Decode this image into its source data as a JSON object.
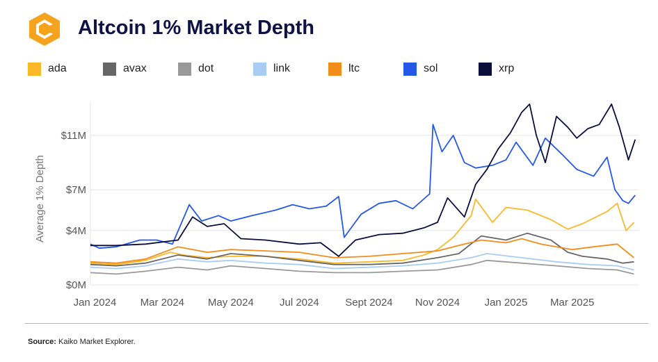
{
  "header": {
    "title": "Altcoin 1% Market Depth",
    "logo_icon": "kaiko-logo-icon"
  },
  "footer": {
    "source_label": "Source:",
    "source_text": " Kaiko Market Explorer."
  },
  "chart_data": {
    "type": "line",
    "title": "Altcoin 1% Market Depth",
    "xlabel": "",
    "ylabel": "Average 1% Depth",
    "x_start": "2023-12-28",
    "x_end": "2025-04-29",
    "x_tick_dates": [
      "2024-01-01",
      "2024-03-01",
      "2024-05-01",
      "2024-07-01",
      "2024-09-01",
      "2024-11-01",
      "2025-01-01",
      "2025-03-01"
    ],
    "x_tick_labels": [
      "Jan 2024",
      "Mar 2024",
      "May 2024",
      "Jul 2024",
      "Sept 2024",
      "Nov 2024",
      "Jan 2025",
      "Mar 2025"
    ],
    "ylim": [
      0,
      13.5
    ],
    "y_ticks": [
      0,
      4,
      7,
      11
    ],
    "y_tick_labels": [
      "$0M",
      "$4M",
      "$7M",
      "$11M"
    ],
    "grid": true,
    "legend_position": "top",
    "series": [
      {
        "name": "ada",
        "color": "#fbb829",
        "points": [
          [
            "2023-12-28",
            1.6
          ],
          [
            "2024-01-20",
            1.5
          ],
          [
            "2024-02-15",
            1.8
          ],
          [
            "2024-03-08",
            2.4
          ],
          [
            "2024-03-20",
            2.2
          ],
          [
            "2024-04-10",
            2.0
          ],
          [
            "2024-05-01",
            2.1
          ],
          [
            "2024-06-01",
            2.1
          ],
          [
            "2024-07-01",
            1.9
          ],
          [
            "2024-08-01",
            1.6
          ],
          [
            "2024-09-01",
            1.7
          ],
          [
            "2024-10-01",
            1.8
          ],
          [
            "2024-10-20",
            2.2
          ],
          [
            "2024-11-01",
            2.6
          ],
          [
            "2024-11-15",
            3.5
          ],
          [
            "2024-12-01",
            5.1
          ],
          [
            "2024-12-05",
            6.3
          ],
          [
            "2024-12-20",
            4.6
          ],
          [
            "2025-01-01",
            5.7
          ],
          [
            "2025-01-20",
            5.5
          ],
          [
            "2025-02-10",
            4.8
          ],
          [
            "2025-02-25",
            4.1
          ],
          [
            "2025-03-10",
            4.5
          ],
          [
            "2025-04-01",
            5.4
          ],
          [
            "2025-04-10",
            6.0
          ],
          [
            "2025-04-18",
            4.0
          ],
          [
            "2025-04-25",
            4.6
          ]
        ]
      },
      {
        "name": "avax",
        "color": "#666666",
        "points": [
          [
            "2023-12-28",
            1.5
          ],
          [
            "2024-01-20",
            1.4
          ],
          [
            "2024-02-15",
            1.6
          ],
          [
            "2024-03-15",
            2.2
          ],
          [
            "2024-04-10",
            1.9
          ],
          [
            "2024-05-01",
            2.3
          ],
          [
            "2024-06-01",
            2.1
          ],
          [
            "2024-07-01",
            1.8
          ],
          [
            "2024-08-01",
            1.5
          ],
          [
            "2024-09-01",
            1.5
          ],
          [
            "2024-10-01",
            1.6
          ],
          [
            "2024-11-01",
            2.0
          ],
          [
            "2024-11-20",
            2.3
          ],
          [
            "2024-12-10",
            3.6
          ],
          [
            "2025-01-01",
            3.3
          ],
          [
            "2025-01-20",
            3.8
          ],
          [
            "2025-02-10",
            3.3
          ],
          [
            "2025-02-25",
            2.4
          ],
          [
            "2025-03-10",
            2.1
          ],
          [
            "2025-04-01",
            1.9
          ],
          [
            "2025-04-15",
            1.6
          ],
          [
            "2025-04-25",
            1.7
          ]
        ]
      },
      {
        "name": "dot",
        "color": "#999999",
        "points": [
          [
            "2023-12-28",
            0.9
          ],
          [
            "2024-01-20",
            0.8
          ],
          [
            "2024-02-15",
            1.0
          ],
          [
            "2024-03-15",
            1.3
          ],
          [
            "2024-04-10",
            1.1
          ],
          [
            "2024-05-01",
            1.4
          ],
          [
            "2024-06-01",
            1.2
          ],
          [
            "2024-07-01",
            1.0
          ],
          [
            "2024-08-01",
            0.9
          ],
          [
            "2024-09-01",
            0.9
          ],
          [
            "2024-10-01",
            1.0
          ],
          [
            "2024-11-01",
            1.1
          ],
          [
            "2024-12-01",
            1.5
          ],
          [
            "2024-12-15",
            1.8
          ],
          [
            "2025-01-15",
            1.6
          ],
          [
            "2025-02-15",
            1.4
          ],
          [
            "2025-03-15",
            1.2
          ],
          [
            "2025-04-10",
            1.1
          ],
          [
            "2025-04-25",
            0.8
          ]
        ]
      },
      {
        "name": "link",
        "color": "#a8ccf2",
        "points": [
          [
            "2023-12-28",
            1.3
          ],
          [
            "2024-01-20",
            1.2
          ],
          [
            "2024-02-15",
            1.4
          ],
          [
            "2024-03-15",
            1.9
          ],
          [
            "2024-04-10",
            1.7
          ],
          [
            "2024-05-01",
            1.8
          ],
          [
            "2024-06-01",
            1.6
          ],
          [
            "2024-07-01",
            1.5
          ],
          [
            "2024-08-01",
            1.2
          ],
          [
            "2024-09-01",
            1.3
          ],
          [
            "2024-10-01",
            1.4
          ],
          [
            "2024-11-01",
            1.6
          ],
          [
            "2024-12-01",
            2.0
          ],
          [
            "2024-12-15",
            2.3
          ],
          [
            "2025-01-15",
            2.0
          ],
          [
            "2025-02-15",
            1.7
          ],
          [
            "2025-03-15",
            1.5
          ],
          [
            "2025-04-10",
            1.4
          ],
          [
            "2025-04-25",
            1.1
          ]
        ]
      },
      {
        "name": "ltc",
        "color": "#f28c1a",
        "points": [
          [
            "2023-12-28",
            1.7
          ],
          [
            "2024-01-20",
            1.6
          ],
          [
            "2024-02-15",
            1.9
          ],
          [
            "2024-03-15",
            2.8
          ],
          [
            "2024-04-10",
            2.4
          ],
          [
            "2024-05-01",
            2.6
          ],
          [
            "2024-06-01",
            2.5
          ],
          [
            "2024-07-01",
            2.4
          ],
          [
            "2024-08-01",
            2.0
          ],
          [
            "2024-09-01",
            2.1
          ],
          [
            "2024-10-01",
            2.3
          ],
          [
            "2024-11-01",
            2.5
          ],
          [
            "2024-11-20",
            2.9
          ],
          [
            "2024-12-10",
            3.3
          ],
          [
            "2025-01-01",
            3.1
          ],
          [
            "2025-01-15",
            3.4
          ],
          [
            "2025-02-01",
            3.0
          ],
          [
            "2025-03-01",
            2.6
          ],
          [
            "2025-03-20",
            2.8
          ],
          [
            "2025-04-10",
            3.0
          ],
          [
            "2025-04-25",
            2.0
          ]
        ]
      },
      {
        "name": "sol",
        "color": "#2458e6",
        "points": [
          [
            "2023-12-28",
            3.0
          ],
          [
            "2024-01-05",
            2.7
          ],
          [
            "2024-01-20",
            2.8
          ],
          [
            "2024-02-10",
            3.3
          ],
          [
            "2024-02-25",
            3.3
          ],
          [
            "2024-03-10",
            3.0
          ],
          [
            "2024-03-25",
            5.9
          ],
          [
            "2024-04-05",
            4.7
          ],
          [
            "2024-04-20",
            5.1
          ],
          [
            "2024-05-01",
            4.7
          ],
          [
            "2024-05-20",
            5.1
          ],
          [
            "2024-06-10",
            5.5
          ],
          [
            "2024-06-25",
            5.9
          ],
          [
            "2024-07-10",
            5.6
          ],
          [
            "2024-07-25",
            5.8
          ],
          [
            "2024-08-05",
            6.5
          ],
          [
            "2024-08-10",
            3.5
          ],
          [
            "2024-08-25",
            5.2
          ],
          [
            "2024-09-10",
            6.0
          ],
          [
            "2024-09-25",
            6.2
          ],
          [
            "2024-10-10",
            5.6
          ],
          [
            "2024-10-25",
            6.7
          ],
          [
            "2024-10-28",
            11.8
          ],
          [
            "2024-11-05",
            9.8
          ],
          [
            "2024-11-15",
            11.0
          ],
          [
            "2024-11-25",
            9.0
          ],
          [
            "2024-12-05",
            8.6
          ],
          [
            "2024-12-20",
            8.8
          ],
          [
            "2025-01-01",
            9.2
          ],
          [
            "2025-01-10",
            10.5
          ],
          [
            "2025-01-25",
            8.8
          ],
          [
            "2025-02-05",
            10.8
          ],
          [
            "2025-02-20",
            9.6
          ],
          [
            "2025-03-05",
            8.5
          ],
          [
            "2025-03-20",
            8.0
          ],
          [
            "2025-04-01",
            9.4
          ],
          [
            "2025-04-08",
            7.0
          ],
          [
            "2025-04-15",
            6.2
          ],
          [
            "2025-04-20",
            6.0
          ],
          [
            "2025-04-26",
            6.6
          ]
        ]
      },
      {
        "name": "xrp",
        "color": "#0b0d3b",
        "points": [
          [
            "2023-12-28",
            2.9
          ],
          [
            "2024-01-20",
            2.9
          ],
          [
            "2024-02-15",
            3.0
          ],
          [
            "2024-03-15",
            3.3
          ],
          [
            "2024-03-28",
            5.0
          ],
          [
            "2024-04-10",
            4.3
          ],
          [
            "2024-04-25",
            4.5
          ],
          [
            "2024-05-10",
            3.4
          ],
          [
            "2024-06-01",
            3.3
          ],
          [
            "2024-07-01",
            3.0
          ],
          [
            "2024-07-20",
            3.1
          ],
          [
            "2024-08-05",
            2.1
          ],
          [
            "2024-08-20",
            3.3
          ],
          [
            "2024-09-10",
            3.7
          ],
          [
            "2024-10-01",
            3.8
          ],
          [
            "2024-10-20",
            4.2
          ],
          [
            "2024-11-01",
            4.6
          ],
          [
            "2024-11-10",
            6.4
          ],
          [
            "2024-11-25",
            5.0
          ],
          [
            "2024-12-05",
            7.4
          ],
          [
            "2024-12-15",
            8.5
          ],
          [
            "2024-12-25",
            10.0
          ],
          [
            "2025-01-05",
            11.2
          ],
          [
            "2025-01-15",
            12.7
          ],
          [
            "2025-01-22",
            13.3
          ],
          [
            "2025-01-28",
            11.0
          ],
          [
            "2025-02-05",
            9.0
          ],
          [
            "2025-02-15",
            12.4
          ],
          [
            "2025-02-25",
            11.6
          ],
          [
            "2025-03-05",
            10.8
          ],
          [
            "2025-03-15",
            11.5
          ],
          [
            "2025-03-25",
            11.8
          ],
          [
            "2025-04-05",
            13.3
          ],
          [
            "2025-04-12",
            11.6
          ],
          [
            "2025-04-20",
            9.2
          ],
          [
            "2025-04-26",
            10.7
          ]
        ]
      }
    ]
  }
}
